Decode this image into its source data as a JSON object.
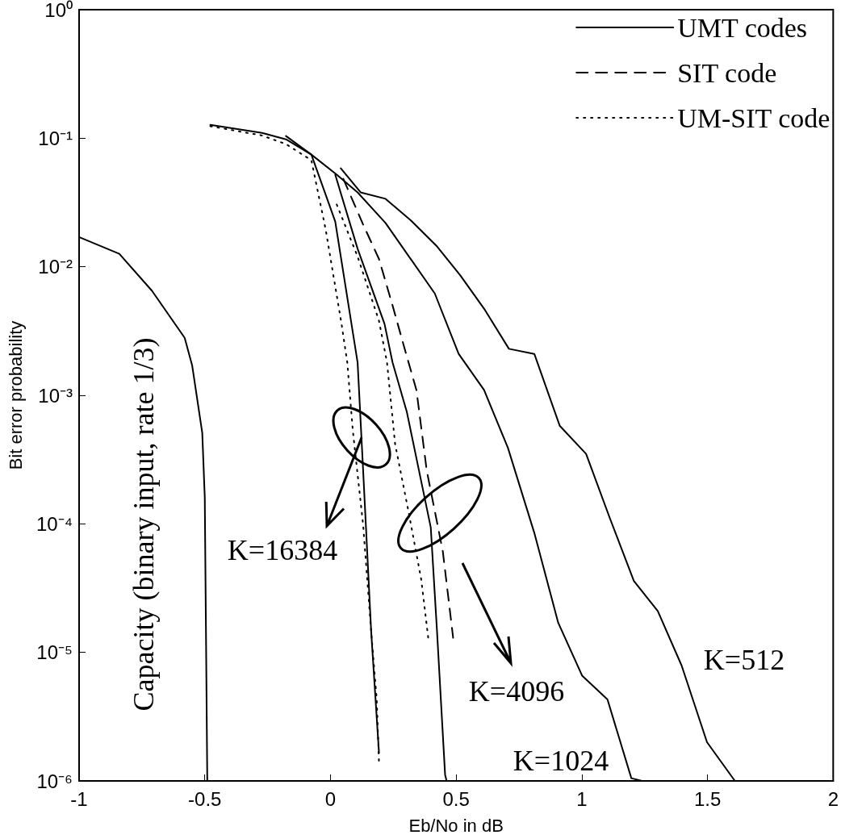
{
  "chart_data": {
    "type": "line",
    "xlabel": "Eb/No in dB",
    "ylabel": "Bit error probability",
    "log": "y",
    "grid": false,
    "legend": "top right",
    "marker": "none",
    "xlim": [
      -1,
      2
    ],
    "xticks": [
      -1,
      -0.5,
      0,
      0.5,
      1,
      1.5,
      2
    ],
    "ylim": [
      1e-06,
      1
    ],
    "yticks": [
      {
        "value": 1e-06,
        "label": "10⁻⁶"
      },
      {
        "value": 1e-05,
        "label": "10⁻⁵"
      },
      {
        "value": 0.0001,
        "label": "10⁻⁴"
      },
      {
        "value": 0.001,
        "label": "10⁻³"
      },
      {
        "value": 0.01,
        "label": "10⁻²"
      },
      {
        "value": 0.1,
        "label": "10⁻¹"
      },
      {
        "value": 1,
        "label": "10⁰"
      }
    ],
    "series": [
      {
        "name": "UMT codes",
        "color": "#000000",
        "line_style": "solid",
        "x": [
          -0.478,
          -0.272,
          -0.177,
          -0.076,
          0.025,
          0.108,
          0.219,
          0.415,
          0.51,
          0.611,
          0.706,
          0.811,
          0.906,
          1.001,
          1.102,
          1.197,
          1.239
        ],
        "values": [
          0.127,
          0.11,
          0.098,
          0.0746,
          0.052,
          0.0379,
          0.0219,
          0.0062,
          0.0021,
          0.0011,
          0.00039,
          8.5e-05,
          1.7e-05,
          6.6e-06,
          4.3e-06,
          1.05e-06,
          1e-06
        ]
      },
      {
        "color": "#000000",
        "line_style": "solid",
        "x": [
          0.041,
          0.12,
          0.219,
          0.32,
          0.421,
          0.516,
          0.615,
          0.71,
          0.811,
          0.912,
          1.017,
          1.112,
          1.207,
          1.302,
          1.397,
          1.498,
          1.609
        ],
        "values": [
          0.0584,
          0.0379,
          0.0338,
          0.0229,
          0.0146,
          0.0086,
          0.0046,
          0.0023,
          0.0021,
          0.00058,
          0.00035,
          0.00011,
          3.6e-05,
          2.1e-05,
          7.9e-06,
          2e-06,
          1e-06
        ]
      },
      {
        "color": "#000000",
        "line_style": "solid",
        "x": [
          0.019,
          0.108,
          0.215,
          0.247,
          0.304,
          0.399,
          0.424,
          0.456,
          0.462
        ],
        "values": [
          0.052,
          0.0138,
          0.0036,
          0.0018,
          0.00074,
          9.4e-05,
          1.45e-05,
          1.12e-06,
          1e-06
        ]
      },
      {
        "color": "#000000",
        "line_style": "solid",
        "x": [
          -0.177,
          -0.076,
          0.019,
          0.108,
          0.13,
          0.162,
          0.193
        ],
        "values": [
          0.104,
          0.0746,
          0.0225,
          0.0018,
          0.00026,
          1.45e-05,
          1.66e-06
        ]
      },
      {
        "name": "SIT code",
        "color": "#000000",
        "line_style": "dashed",
        "x": [
          0.051,
          0.13,
          0.193,
          0.247,
          0.298,
          0.342,
          0.383,
          0.447,
          0.488
        ],
        "values": [
          0.0484,
          0.0213,
          0.0115,
          0.005,
          0.0022,
          0.0011,
          0.00026,
          6.1e-05,
          1.3e-05
        ]
      },
      {
        "name": "UM-SIT code",
        "color": "#000000",
        "line_style": "dotted",
        "x": [
          0.025,
          0.108,
          0.193,
          0.225,
          0.257,
          0.31,
          0.361,
          0.39
        ],
        "values": [
          0.0305,
          0.012,
          0.0038,
          0.0018,
          0.00042,
          0.000126,
          3.7e-05,
          1.25e-05
        ]
      },
      {
        "color": "#000000",
        "line_style": "dotted",
        "x": [
          -0.478,
          -0.272,
          -0.177,
          -0.076,
          -0.019,
          0.044,
          0.067,
          0.089,
          0.13,
          0.162,
          0.184,
          0.193
        ],
        "values": [
          0.124,
          0.105,
          0.09,
          0.0675,
          0.0195,
          0.0036,
          0.0018,
          0.00053,
          9.8e-05,
          1.45e-05,
          4.3e-06,
          1.4e-06
        ]
      },
      {
        "color": "#000000",
        "line_style": "solid",
        "x": [
          -1,
          -0.84,
          -0.71,
          -0.58,
          -0.55,
          -0.51,
          -0.5,
          -0.49
        ],
        "values": [
          0.017,
          0.0126,
          0.0065,
          0.0028,
          0.0017,
          0.00051,
          0.00016,
          1e-06
        ]
      }
    ],
    "annotations": [
      "Capacity (binary input, rate 1/3)",
      {
        "text": "K=16384",
        "x": 0.124,
        "y": 0.00047
      },
      "K=4096",
      "K=512",
      "K=1024"
    ]
  }
}
